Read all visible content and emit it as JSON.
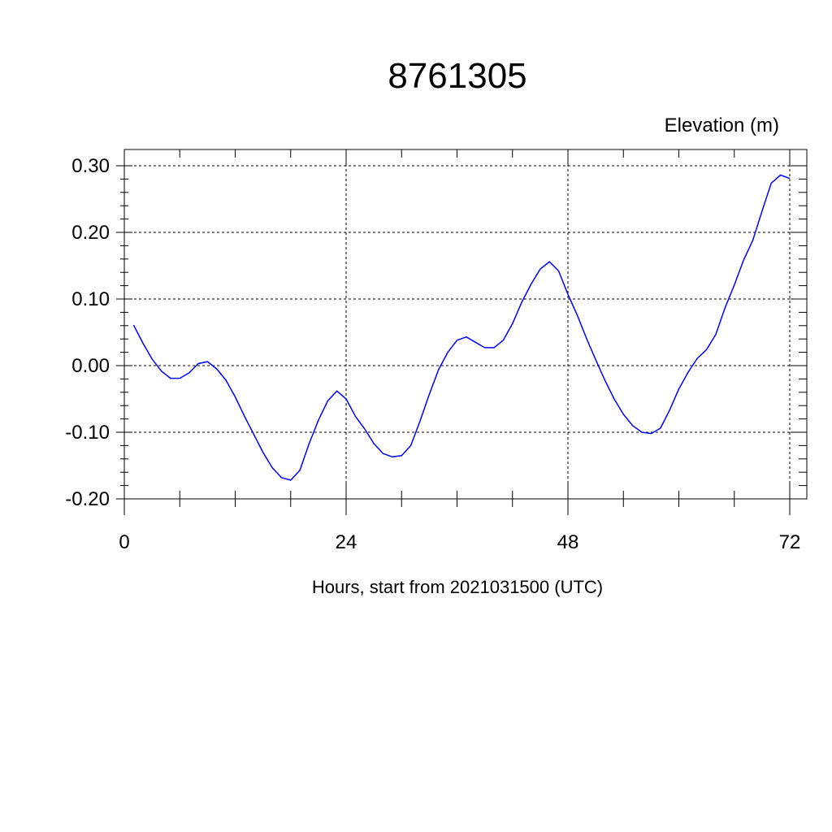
{
  "chart_data": {
    "type": "line",
    "title": "8761305",
    "ylabel": "Elevation (m)",
    "xlabel": "Hours, start from 2021031500 (UTC)",
    "xlim": [
      0,
      72
    ],
    "ylim": [
      -0.2,
      0.3
    ],
    "x_ticks": [
      0,
      24,
      48,
      72
    ],
    "x_tick_labels": [
      "0",
      "24",
      "48",
      "72"
    ],
    "y_ticks": [
      -0.2,
      -0.1,
      0.0,
      0.1,
      0.2,
      0.3
    ],
    "y_tick_labels": [
      "-0.20",
      "-0.10",
      "0.00",
      "0.10",
      "0.20",
      "0.30"
    ],
    "grid": true,
    "line_color": "#0000ff",
    "series": [
      {
        "x": [
          1,
          2,
          3,
          4,
          5,
          6,
          7,
          8,
          9,
          10,
          11,
          12,
          13,
          14,
          15,
          16,
          17,
          18,
          19,
          20,
          21,
          22,
          23,
          24,
          25,
          26,
          27,
          28,
          29,
          30,
          31,
          32,
          33,
          34,
          35,
          36,
          37,
          38,
          39,
          40,
          41,
          42,
          43,
          44,
          45,
          46,
          47,
          48,
          49,
          50,
          51,
          52,
          53,
          54,
          55,
          56,
          57,
          58,
          59,
          60,
          61,
          62,
          63,
          64,
          65,
          66,
          67,
          68,
          69,
          70,
          71,
          72
        ],
        "values": [
          0.061,
          0.034,
          0.01,
          -0.008,
          -0.019,
          -0.019,
          -0.011,
          0.003,
          0.006,
          -0.005,
          -0.022,
          -0.047,
          -0.076,
          -0.103,
          -0.13,
          -0.153,
          -0.168,
          -0.172,
          -0.157,
          -0.117,
          -0.082,
          -0.053,
          -0.038,
          -0.05,
          -0.076,
          -0.095,
          -0.117,
          -0.132,
          -0.137,
          -0.135,
          -0.12,
          -0.083,
          -0.043,
          -0.006,
          0.02,
          0.038,
          0.043,
          0.035,
          0.027,
          0.027,
          0.038,
          0.063,
          0.095,
          0.122,
          0.145,
          0.156,
          0.142,
          0.107,
          0.076,
          0.041,
          0.009,
          -0.022,
          -0.05,
          -0.073,
          -0.09,
          -0.1,
          -0.102,
          -0.094,
          -0.067,
          -0.035,
          -0.01,
          0.011,
          0.024,
          0.047,
          0.087,
          0.121,
          0.158,
          0.188,
          0.232,
          0.274,
          0.286,
          0.281
        ]
      }
    ]
  }
}
